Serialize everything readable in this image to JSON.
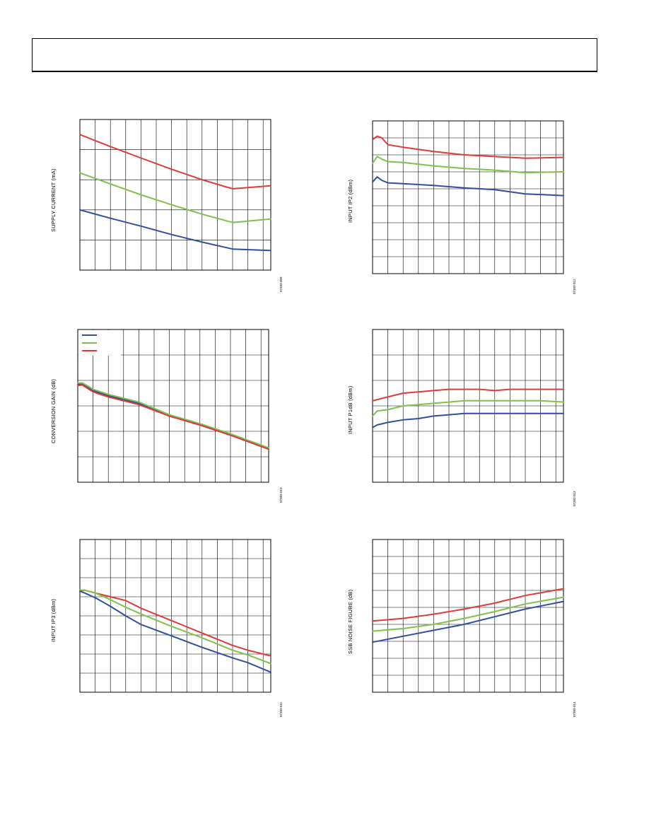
{
  "chart_data": [
    {
      "type": "line",
      "ylabel": "SUPPLY CURRENT (mA)",
      "figure_code": "07383-009",
      "grid": true,
      "xlim": [
        0,
        12.5
      ],
      "ylim": [
        0,
        5
      ],
      "series": [
        {
          "color": "#e03a3a",
          "x": [
            0,
            2,
            4,
            6,
            8,
            10,
            12.5
          ],
          "y": [
            4.5,
            4.1,
            3.72,
            3.35,
            3.0,
            2.7,
            2.8
          ]
        },
        {
          "color": "#7fc24b",
          "x": [
            0,
            2,
            4,
            6,
            8,
            10,
            12.5
          ],
          "y": [
            3.23,
            2.86,
            2.5,
            2.17,
            1.86,
            1.58,
            1.7
          ]
        },
        {
          "color": "#2f4fa0",
          "x": [
            0,
            2,
            4,
            6,
            8,
            10,
            12.5
          ],
          "y": [
            2.0,
            1.72,
            1.46,
            1.18,
            0.93,
            0.7,
            0.65
          ]
        }
      ]
    },
    {
      "type": "line",
      "ylabel": "INPUT IP2 (dBm)",
      "figure_code": "07383-012",
      "grid": true,
      "xlim": [
        0,
        12.5
      ],
      "ylim": [
        0,
        9
      ],
      "series": [
        {
          "color": "#e03a3a",
          "x": [
            0,
            0.3,
            0.6,
            1,
            2,
            4,
            6,
            8,
            10,
            12.5
          ],
          "y": [
            7.9,
            8.1,
            8.0,
            7.6,
            7.45,
            7.2,
            7.0,
            6.9,
            6.8,
            6.85
          ]
        },
        {
          "color": "#7fc24b",
          "x": [
            0,
            0.3,
            0.6,
            1,
            2,
            4,
            6,
            8,
            10,
            12.5
          ],
          "y": [
            6.5,
            6.9,
            6.75,
            6.6,
            6.55,
            6.35,
            6.2,
            6.1,
            5.95,
            6.0
          ]
        },
        {
          "color": "#2f4fa0",
          "x": [
            0,
            0.3,
            0.6,
            1,
            2,
            4,
            6,
            8,
            10,
            12.5
          ],
          "y": [
            5.4,
            5.7,
            5.5,
            5.35,
            5.3,
            5.2,
            5.05,
            4.95,
            4.7,
            4.6
          ]
        }
      ]
    },
    {
      "type": "line",
      "ylabel": "CONVERSION GAIN (dB)",
      "figure_code": "07383-010",
      "grid": true,
      "xlim": [
        0,
        12.5
      ],
      "ylim": [
        0,
        6
      ],
      "legend": {
        "placement": "top-left",
        "colors": [
          "#2f4fa0",
          "#7fc24b",
          "#e03a3a"
        ]
      },
      "series": [
        {
          "color": "#2f4fa0",
          "x": [
            0,
            0.3,
            0.6,
            1,
            2,
            4,
            6,
            8,
            10,
            12.5
          ],
          "y": [
            3.85,
            3.85,
            3.75,
            3.6,
            3.4,
            3.1,
            2.6,
            2.25,
            1.85,
            1.3
          ]
        },
        {
          "color": "#7fc24b",
          "x": [
            0,
            0.3,
            0.6,
            1,
            2,
            4,
            6,
            8,
            10,
            12.5
          ],
          "y": [
            3.9,
            3.9,
            3.8,
            3.65,
            3.45,
            3.15,
            2.65,
            2.3,
            1.9,
            1.35
          ]
        },
        {
          "color": "#e03a3a",
          "x": [
            0,
            0.3,
            0.6,
            1,
            2,
            4,
            6,
            8,
            10,
            12.5
          ],
          "y": [
            3.8,
            3.82,
            3.7,
            3.55,
            3.35,
            3.05,
            2.6,
            2.25,
            1.85,
            1.3
          ]
        }
      ]
    },
    {
      "type": "line",
      "ylabel": "INPUT P1dB (dBm)",
      "figure_code": "07383-013",
      "grid": true,
      "xlim": [
        0,
        12.5
      ],
      "ylim": [
        0,
        6
      ],
      "series": [
        {
          "color": "#e03a3a",
          "x": [
            0,
            1,
            2,
            3,
            4,
            5,
            6,
            7,
            8,
            9,
            10,
            11,
            12.5
          ],
          "y": [
            3.2,
            3.35,
            3.5,
            3.55,
            3.6,
            3.65,
            3.65,
            3.65,
            3.6,
            3.65,
            3.65,
            3.65,
            3.65
          ]
        },
        {
          "color": "#7fc24b",
          "x": [
            0,
            0.3,
            1,
            2,
            3,
            4,
            5,
            6,
            7,
            8,
            9,
            10,
            11,
            12.5
          ],
          "y": [
            2.6,
            2.8,
            2.85,
            3.0,
            3.05,
            3.1,
            3.15,
            3.2,
            3.2,
            3.2,
            3.2,
            3.2,
            3.2,
            3.15
          ]
        },
        {
          "color": "#2f4fa0",
          "x": [
            0,
            0.3,
            1,
            2,
            3,
            4,
            5,
            6,
            7,
            8,
            9,
            10,
            11,
            12.5
          ],
          "y": [
            2.15,
            2.25,
            2.35,
            2.45,
            2.5,
            2.6,
            2.65,
            2.7,
            2.7,
            2.7,
            2.7,
            2.7,
            2.7,
            2.7
          ]
        }
      ]
    },
    {
      "type": "line",
      "ylabel": "INPUT IP3 (dBm)",
      "figure_code": "07383-011",
      "grid": true,
      "xlim": [
        0,
        12.5
      ],
      "ylim": [
        0,
        8
      ],
      "series": [
        {
          "color": "#e03a3a",
          "x": [
            0,
            0.3,
            1,
            2,
            3,
            4,
            6,
            8,
            10,
            11,
            12.5
          ],
          "y": [
            5.3,
            5.35,
            5.2,
            5.0,
            4.8,
            4.4,
            3.75,
            3.1,
            2.45,
            2.2,
            1.9
          ]
        },
        {
          "color": "#7fc24b",
          "x": [
            0,
            0.3,
            1,
            2,
            3,
            4,
            6,
            8,
            10,
            11,
            12.5
          ],
          "y": [
            5.35,
            5.35,
            5.2,
            4.85,
            4.45,
            4.1,
            3.45,
            2.85,
            2.2,
            1.95,
            1.5
          ]
        },
        {
          "color": "#2f4fa0",
          "x": [
            0,
            0.3,
            1,
            2,
            3,
            4,
            6,
            8,
            10,
            11,
            12.5
          ],
          "y": [
            5.3,
            5.2,
            4.95,
            4.5,
            4.0,
            3.55,
            2.95,
            2.35,
            1.8,
            1.55,
            1.05
          ]
        }
      ]
    },
    {
      "type": "line",
      "ylabel": "SSB NOISE FIGURE (dB)",
      "figure_code": "07383-014",
      "grid": true,
      "xlim": [
        0,
        12.5
      ],
      "ylim": [
        0,
        9
      ],
      "series": [
        {
          "color": "#e03a3a",
          "x": [
            0,
            2,
            4,
            6,
            8,
            10,
            12.5
          ],
          "y": [
            4.2,
            4.35,
            4.6,
            4.9,
            5.25,
            5.7,
            6.1
          ]
        },
        {
          "color": "#7fc24b",
          "x": [
            0,
            2,
            4,
            6,
            8,
            10,
            12.5
          ],
          "y": [
            3.6,
            3.75,
            4.0,
            4.35,
            4.75,
            5.2,
            5.6
          ]
        },
        {
          "color": "#2f4fa0",
          "x": [
            0,
            2,
            4,
            6,
            8,
            10,
            12.5
          ],
          "y": [
            2.95,
            3.3,
            3.65,
            4.0,
            4.45,
            4.9,
            5.35
          ]
        }
      ]
    }
  ]
}
